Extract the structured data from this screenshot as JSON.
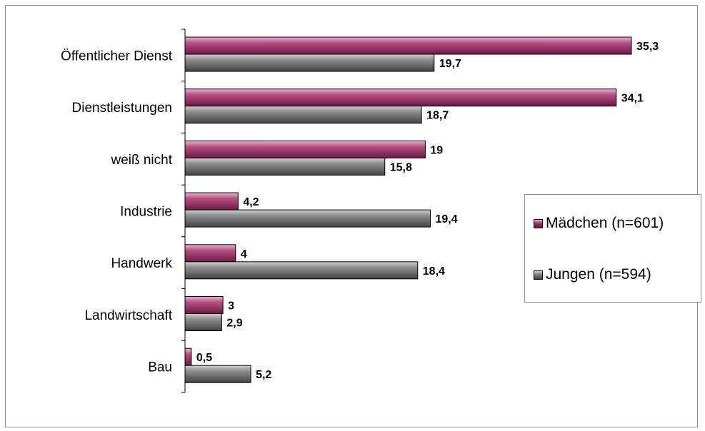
{
  "chart_data": {
    "type": "bar",
    "orientation": "horizontal",
    "categories": [
      "Öffentlicher Dienst",
      "Dienstleistungen",
      "weiß nicht",
      "Industrie",
      "Handwerk",
      "Landwirtschaft",
      "Bau"
    ],
    "series": [
      {
        "name": "Mädchen (n=601)",
        "color": "#9b2f66",
        "values": [
          35.3,
          34.1,
          19,
          4.2,
          4,
          3,
          0.5
        ],
        "labels": [
          "35,3",
          "34,1",
          "19",
          "4,2",
          "4",
          "3",
          "0,5"
        ]
      },
      {
        "name": "Jungen (n=594)",
        "color": "#6f6f6f",
        "values": [
          19.7,
          18.7,
          15.8,
          19.4,
          18.4,
          2.9,
          5.2
        ],
        "labels": [
          "19,7",
          "18,7",
          "15,8",
          "19,4",
          "18,4",
          "2,9",
          "5,2"
        ]
      }
    ],
    "xlim": [
      0,
      35.3
    ],
    "grid": false,
    "legend_position": "right"
  }
}
